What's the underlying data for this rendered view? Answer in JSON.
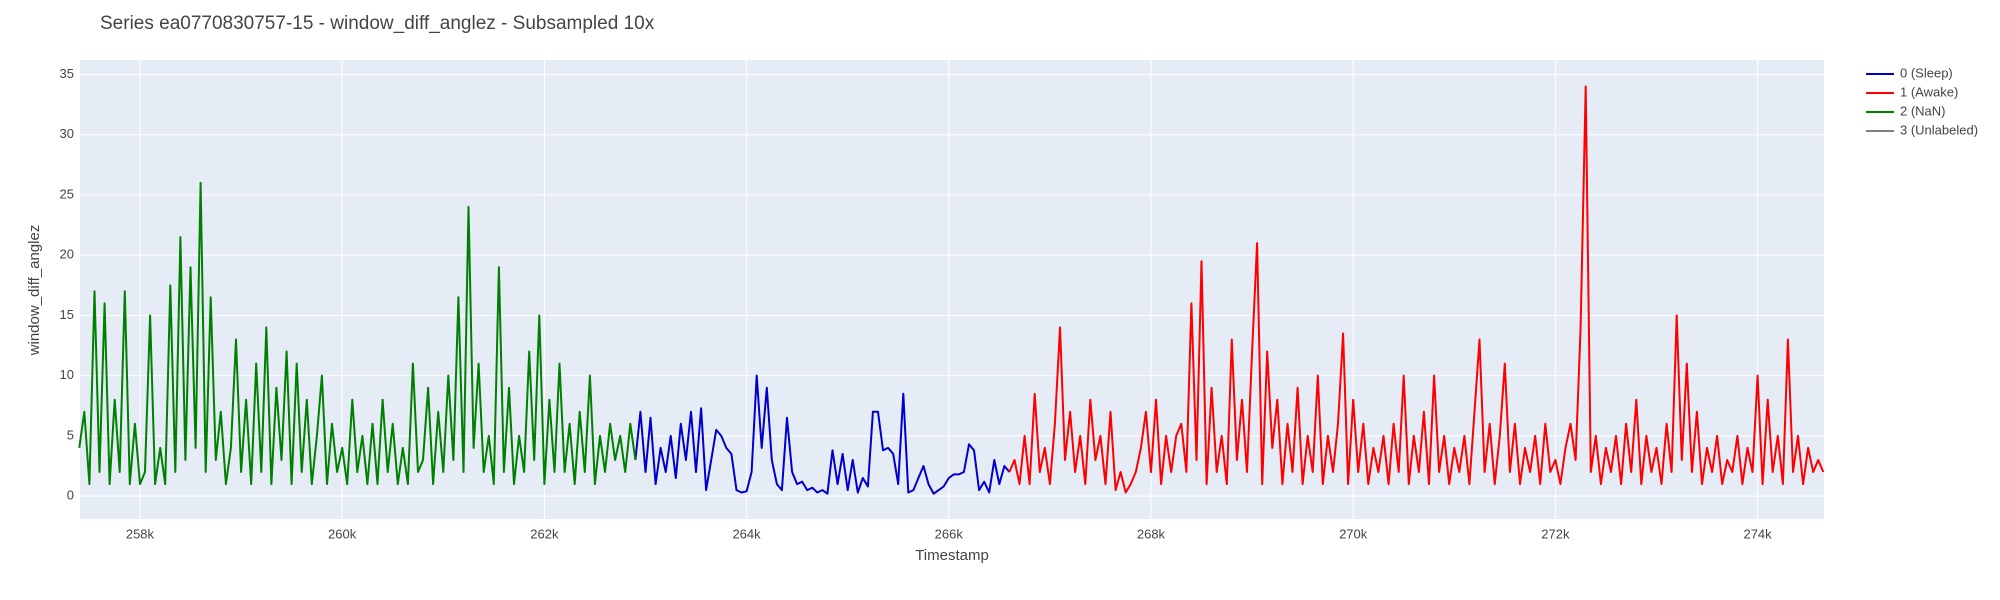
{
  "chart_data": {
    "type": "line",
    "title": "Series ea0770830757-15 - window_diff_anglez - Subsampled 10x",
    "x_label": "Timestamp",
    "y_label": "window_diff_anglez",
    "xlim": [
      257407,
      274657
    ],
    "ylim": [
      -1.9,
      36.2
    ],
    "xticks": [
      {
        "value": 258000,
        "label": "258k"
      },
      {
        "value": 260000,
        "label": "260k"
      },
      {
        "value": 262000,
        "label": "262k"
      },
      {
        "value": 264000,
        "label": "264k"
      },
      {
        "value": 266000,
        "label": "266k"
      },
      {
        "value": 268000,
        "label": "268k"
      },
      {
        "value": 270000,
        "label": "270k"
      },
      {
        "value": 272000,
        "label": "272k"
      },
      {
        "value": 274000,
        "label": "274k"
      }
    ],
    "yticks": [
      0,
      5,
      10,
      15,
      20,
      25,
      30,
      35
    ],
    "grid": true,
    "legend": "right",
    "series": [
      {
        "name": "0 (Sleep)",
        "color": "#0000cc",
        "x": [
          262900,
          262950,
          263000,
          263050,
          263100,
          263150,
          263200,
          263250,
          263300,
          263350,
          263400,
          263450,
          263500,
          263550,
          263600,
          263650,
          263700,
          263750,
          263800,
          263850,
          263900,
          263950,
          264000,
          264050,
          264100,
          264150,
          264200,
          264250,
          264300,
          264350,
          264400,
          264450,
          264500,
          264550,
          264600,
          264650,
          264700,
          264750,
          264800,
          264850,
          264900,
          264950,
          265000,
          265050,
          265100,
          265150,
          265200,
          265250,
          265300,
          265350,
          265400,
          265450,
          265500,
          265550,
          265600,
          265650,
          265700,
          265750,
          265800,
          265850,
          265900,
          265950,
          266000,
          266050,
          266100,
          266150,
          266200,
          266250,
          266300,
          266350,
          266400,
          266450,
          266500,
          266550,
          266600
        ],
        "values": [
          3,
          7,
          2,
          6.5,
          1,
          4,
          2,
          5,
          1.5,
          6,
          3,
          7,
          2,
          7.3,
          0.5,
          3,
          5.5,
          5,
          4,
          3.5,
          0.5,
          0.3,
          0.4,
          2,
          10,
          4,
          9,
          3,
          1,
          0.5,
          6.5,
          2,
          1,
          1.2,
          0.5,
          0.7,
          0.3,
          0.5,
          0.2,
          3.8,
          1,
          3.5,
          0.5,
          3,
          0.3,
          1.5,
          0.8,
          7,
          7,
          3.8,
          4,
          3.5,
          1,
          8.5,
          0.3,
          0.5,
          1.5,
          2.5,
          1,
          0.2,
          0.5,
          0.8,
          1.5,
          1.8,
          1.8,
          2,
          4.3,
          3.8,
          0.5,
          1.2,
          0.3,
          3,
          1,
          2.5,
          2
        ]
      },
      {
        "name": "1 (Awake)",
        "color": "#ff0000",
        "x": [
          266600,
          266650,
          266700,
          266750,
          266800,
          266850,
          266900,
          266950,
          267000,
          267050,
          267100,
          267150,
          267200,
          267250,
          267300,
          267350,
          267400,
          267450,
          267500,
          267550,
          267600,
          267650,
          267700,
          267750,
          267800,
          267850,
          267900,
          267950,
          268000,
          268050,
          268100,
          268150,
          268200,
          268250,
          268300,
          268350,
          268400,
          268450,
          268500,
          268550,
          268600,
          268650,
          268700,
          268750,
          268800,
          268850,
          268900,
          268950,
          269000,
          269050,
          269100,
          269150,
          269200,
          269250,
          269300,
          269350,
          269400,
          269450,
          269500,
          269550,
          269600,
          269650,
          269700,
          269750,
          269800,
          269850,
          269900,
          269950,
          270000,
          270050,
          270100,
          270150,
          270200,
          270250,
          270300,
          270350,
          270400,
          270450,
          270500,
          270550,
          270600,
          270650,
          270700,
          270750,
          270800,
          270850,
          270900,
          270950,
          271000,
          271050,
          271100,
          271150,
          271200,
          271250,
          271300,
          271350,
          271400,
          271450,
          271500,
          271550,
          271600,
          271650,
          271700,
          271750,
          271800,
          271850,
          271900,
          271950,
          272000,
          272050,
          272100,
          272150,
          272200,
          272250,
          272300,
          272350,
          272400,
          272450,
          272500,
          272550,
          272600,
          272650,
          272700,
          272750,
          272800,
          272850,
          272900,
          272950,
          273000,
          273050,
          273100,
          273150,
          273200,
          273250,
          273300,
          273350,
          273400,
          273450,
          273500,
          273550,
          273600,
          273650,
          273700,
          273750,
          273800,
          273850,
          273900,
          273950,
          274000,
          274050,
          274100,
          274150,
          274200,
          274250,
          274300,
          274350,
          274400,
          274450,
          274500,
          274550,
          274600,
          274650
        ],
        "values": [
          2,
          3,
          1,
          5,
          1,
          8.5,
          2,
          4,
          1,
          6,
          14,
          3,
          7,
          2,
          5,
          1,
          8,
          3,
          5,
          1,
          7,
          0.5,
          2,
          0.3,
          1,
          2,
          4,
          7,
          2,
          8,
          1,
          5,
          2,
          5,
          6,
          2,
          16,
          3,
          19.5,
          1,
          9,
          2,
          5,
          1,
          13,
          3,
          8,
          2,
          12,
          21,
          1,
          12,
          4,
          8,
          1,
          6,
          2,
          9,
          1,
          5,
          2,
          10,
          1,
          5,
          2,
          6,
          13.5,
          1,
          8,
          2,
          6,
          1,
          4,
          2,
          5,
          1,
          6,
          2,
          10,
          1,
          5,
          2,
          7,
          1,
          10,
          2,
          5,
          1,
          4,
          2,
          5,
          1,
          7,
          13,
          2,
          6,
          1,
          5,
          11,
          2,
          6,
          1,
          4,
          2,
          5,
          1,
          6,
          2,
          3,
          1,
          4,
          6,
          3,
          14,
          34,
          2,
          5,
          1,
          4,
          2,
          5,
          1,
          6,
          2,
          8,
          1,
          5,
          2,
          4,
          1,
          6,
          2,
          15,
          3,
          11,
          2,
          7,
          1,
          4,
          2,
          5,
          1,
          3,
          2,
          5,
          1,
          4,
          2,
          10,
          1,
          8,
          2,
          5,
          1,
          13,
          2,
          5,
          1,
          4,
          2,
          3,
          2
        ]
      },
      {
        "name": "2 (NaN)",
        "color": "#008000",
        "x": [
          257400,
          257450,
          257500,
          257550,
          257600,
          257650,
          257700,
          257750,
          257800,
          257850,
          257900,
          257950,
          258000,
          258050,
          258100,
          258150,
          258200,
          258250,
          258300,
          258350,
          258400,
          258450,
          258500,
          258550,
          258600,
          258650,
          258700,
          258750,
          258800,
          258850,
          258900,
          258950,
          259000,
          259050,
          259100,
          259150,
          259200,
          259250,
          259300,
          259350,
          259400,
          259450,
          259500,
          259550,
          259600,
          259650,
          259700,
          259750,
          259800,
          259850,
          259900,
          259950,
          260000,
          260050,
          260100,
          260150,
          260200,
          260250,
          260300,
          260350,
          260400,
          260450,
          260500,
          260550,
          260600,
          260650,
          260700,
          260750,
          260800,
          260850,
          260900,
          260950,
          261000,
          261050,
          261100,
          261150,
          261200,
          261250,
          261300,
          261350,
          261400,
          261450,
          261500,
          261550,
          261600,
          261650,
          261700,
          261750,
          261800,
          261850,
          261900,
          261950,
          262000,
          262050,
          262100,
          262150,
          262200,
          262250,
          262300,
          262350,
          262400,
          262450,
          262500,
          262550,
          262600,
          262650,
          262700,
          262750,
          262800,
          262850,
          262900
        ],
        "values": [
          4,
          7,
          1,
          17,
          2,
          16,
          1,
          8,
          2,
          17,
          1,
          6,
          1,
          2,
          15,
          1,
          4,
          1,
          17.5,
          2,
          21.5,
          3,
          19,
          4,
          26,
          2,
          16.5,
          3,
          7,
          1,
          4,
          13,
          2,
          8,
          1,
          11,
          2,
          14,
          1,
          9,
          3,
          12,
          1,
          11,
          2,
          8,
          1,
          5,
          10,
          1,
          6,
          2,
          4,
          1,
          8,
          2,
          5,
          1,
          6,
          1,
          8,
          2,
          6,
          1,
          4,
          1,
          11,
          2,
          3,
          9,
          1,
          7,
          2,
          10,
          3,
          16.5,
          2,
          24,
          4,
          11,
          2,
          5,
          1,
          19,
          2,
          9,
          1,
          5,
          2,
          12,
          3,
          15,
          1,
          8,
          2,
          11,
          2,
          6,
          1,
          7,
          2,
          10,
          1,
          5,
          2,
          6,
          3,
          5,
          2,
          6,
          3
        ]
      },
      {
        "name": "3 (Unlabeled)",
        "color": "#808080",
        "x": [],
        "values": []
      }
    ]
  }
}
